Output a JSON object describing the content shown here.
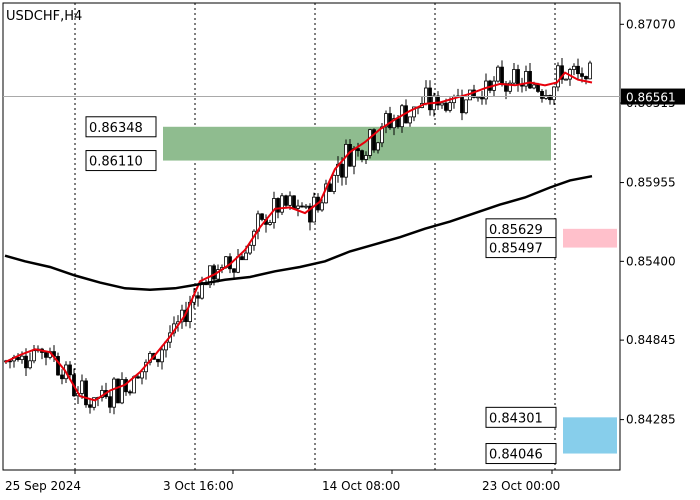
{
  "chart_data": {
    "type": "candlestick",
    "title": "USDCHF,H4",
    "ylim": [
      0.8393,
      0.8722
    ],
    "y_ticks": [
      "0.87070",
      "0.86515",
      "0.85955",
      "0.85400",
      "0.84845",
      "0.84285"
    ],
    "x_ticks": [
      "25 Sep 2024",
      "3 Oct 16:00",
      "14 Oct 08:00",
      "23 Oct 00:00"
    ],
    "current_price": "0.86561",
    "zones": [
      {
        "type": "resistance-support",
        "color": "#8fbc8f",
        "upper_label": "0.86348",
        "lower_label": "0.86110",
        "upper": 0.86348,
        "lower": 0.8611
      },
      {
        "type": "resistance",
        "color": "#ffc0cb",
        "upper_label": "0.85629",
        "lower_label": "0.85497",
        "upper": 0.85629,
        "lower": 0.85497
      },
      {
        "type": "support",
        "color": "#87ceeb",
        "upper_label": "0.84301",
        "lower_label": "0.84046",
        "upper": 0.84301,
        "lower": 0.84046
      }
    ],
    "series": [
      {
        "name": "",
        "color": "#e8000b",
        "points": [
          [
            5,
            0.8469
          ],
          [
            20,
            0.8474
          ],
          [
            35,
            0.8478
          ],
          [
            50,
            0.8476
          ],
          [
            65,
            0.8463
          ],
          [
            80,
            0.8445
          ],
          [
            95,
            0.8442
          ],
          [
            110,
            0.8449
          ],
          [
            125,
            0.8453
          ],
          [
            140,
            0.8462
          ],
          [
            155,
            0.8474
          ],
          [
            170,
            0.8487
          ],
          [
            185,
            0.8502
          ],
          [
            200,
            0.8526
          ],
          [
            215,
            0.8531
          ],
          [
            230,
            0.8538
          ],
          [
            245,
            0.8548
          ],
          [
            260,
            0.8564
          ],
          [
            275,
            0.8577
          ],
          [
            290,
            0.8578
          ],
          [
            305,
            0.8574
          ],
          [
            320,
            0.8582
          ],
          [
            335,
            0.8605
          ],
          [
            350,
            0.8617
          ],
          [
            365,
            0.8624
          ],
          [
            380,
            0.8633
          ],
          [
            395,
            0.864
          ],
          [
            410,
            0.8646
          ],
          [
            425,
            0.8651
          ],
          [
            440,
            0.8652
          ],
          [
            455,
            0.8655
          ],
          [
            470,
            0.8658
          ],
          [
            485,
            0.8662
          ],
          [
            500,
            0.8665
          ],
          [
            515,
            0.8664
          ],
          [
            530,
            0.8666
          ],
          [
            545,
            0.8664
          ],
          [
            557,
            0.8666
          ],
          [
            565,
            0.8673
          ],
          [
            578,
            0.8668
          ],
          [
            592,
            0.8666
          ]
        ]
      },
      {
        "name": "",
        "color": "#000000",
        "points": [
          [
            5,
            0.8544
          ],
          [
            25,
            0.854
          ],
          [
            50,
            0.8536
          ],
          [
            75,
            0.853
          ],
          [
            100,
            0.8525
          ],
          [
            125,
            0.8521
          ],
          [
            150,
            0.852
          ],
          [
            175,
            0.8521
          ],
          [
            200,
            0.8524
          ],
          [
            225,
            0.8527
          ],
          [
            250,
            0.8529
          ],
          [
            275,
            0.8533
          ],
          [
            300,
            0.8536
          ],
          [
            325,
            0.854
          ],
          [
            350,
            0.8547
          ],
          [
            375,
            0.8552
          ],
          [
            400,
            0.8557
          ],
          [
            425,
            0.8563
          ],
          [
            450,
            0.8568
          ],
          [
            475,
            0.8574
          ],
          [
            500,
            0.858
          ],
          [
            525,
            0.8585
          ],
          [
            550,
            0.8592
          ],
          [
            570,
            0.8597
          ],
          [
            592,
            0.86
          ]
        ]
      }
    ]
  }
}
